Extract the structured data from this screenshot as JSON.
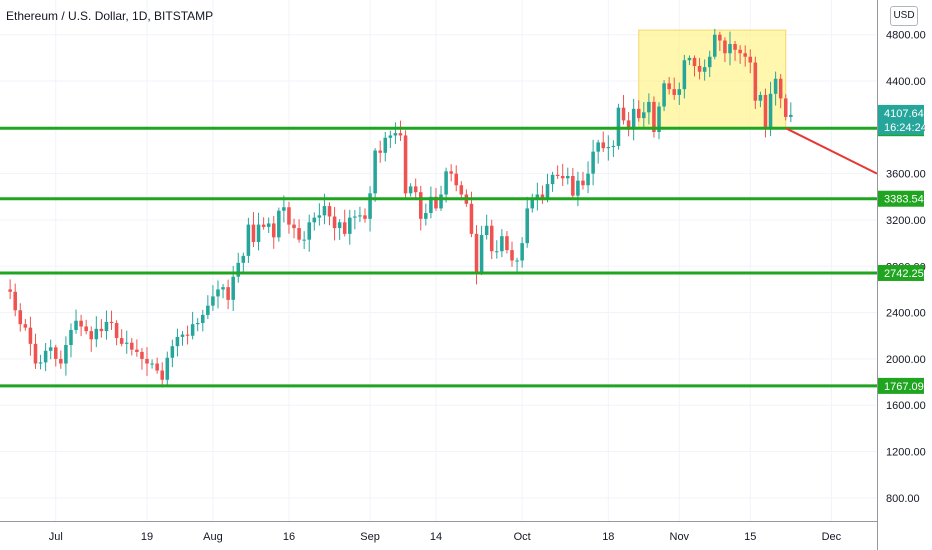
{
  "header": {
    "title": "Ethereum / U.S. Dollar, 1D, BITSTAMP",
    "currency_button": "USD"
  },
  "colors": {
    "up": "#26a69a",
    "down": "#ef5350",
    "level_line": "#1fa51f",
    "highlight": "#fff176",
    "projection": "#e53935",
    "price_label_bg": "#26a69a"
  },
  "chart_data": {
    "type": "candlestick",
    "symbol": "Ethereum / U.S. Dollar",
    "interval": "1D",
    "exchange": "BITSTAMP",
    "ylim": [
      600,
      5100
    ],
    "y_ticks": [
      "800.00",
      "1200.00",
      "1600.00",
      "2000.00",
      "2400.00",
      "2800.00",
      "3200.00",
      "3600.00",
      "4000.00",
      "4400.00",
      "4800.00"
    ],
    "x_ticks": [
      {
        "label": "Jul",
        "date": "2021-07-01"
      },
      {
        "label": "19",
        "date": "2021-07-19"
      },
      {
        "label": "Aug",
        "date": "2021-08-01"
      },
      {
        "label": "16",
        "date": "2021-08-16"
      },
      {
        "label": "Sep",
        "date": "2021-09-01"
      },
      {
        "label": "14",
        "date": "2021-09-14"
      },
      {
        "label": "Oct",
        "date": "2021-10-01"
      },
      {
        "label": "18",
        "date": "2021-10-18"
      },
      {
        "label": "Nov",
        "date": "2021-11-01"
      },
      {
        "label": "15",
        "date": "2021-11-15"
      },
      {
        "label": "Dec",
        "date": "2021-12-01"
      }
    ],
    "date_range": [
      "2021-06-20",
      "2021-12-10"
    ],
    "closes": [
      [
        "2021-06-21",
        2600
      ],
      [
        "2021-06-22",
        2580
      ],
      [
        "2021-06-23",
        2420
      ],
      [
        "2021-06-24",
        2300
      ],
      [
        "2021-06-25",
        2270
      ],
      [
        "2021-06-26",
        2130
      ],
      [
        "2021-06-27",
        1960
      ],
      [
        "2021-06-28",
        1970
      ],
      [
        "2021-06-29",
        2070
      ],
      [
        "2021-06-30",
        2100
      ],
      [
        "2021-07-01",
        2000
      ],
      [
        "2021-07-02",
        1960
      ],
      [
        "2021-07-03",
        2120
      ],
      [
        "2021-07-04",
        2250
      ],
      [
        "2021-07-05",
        2330
      ],
      [
        "2021-07-06",
        2280
      ],
      [
        "2021-07-07",
        2240
      ],
      [
        "2021-07-08",
        2170
      ],
      [
        "2021-07-09",
        2260
      ],
      [
        "2021-07-10",
        2240
      ],
      [
        "2021-07-11",
        2320
      ],
      [
        "2021-07-12",
        2310
      ],
      [
        "2021-07-13",
        2180
      ],
      [
        "2021-07-14",
        2130
      ],
      [
        "2021-07-15",
        2140
      ],
      [
        "2021-07-16",
        2080
      ],
      [
        "2021-07-17",
        2060
      ],
      [
        "2021-07-18",
        2000
      ],
      [
        "2021-07-19",
        1960
      ],
      [
        "2021-07-20",
        1960
      ],
      [
        "2021-07-21",
        1900
      ],
      [
        "2021-07-22",
        1820
      ],
      [
        "2021-07-23",
        2010
      ],
      [
        "2021-07-24",
        2110
      ],
      [
        "2021-07-25",
        2190
      ],
      [
        "2021-07-26",
        2210
      ],
      [
        "2021-07-27",
        2200
      ],
      [
        "2021-07-28",
        2300
      ],
      [
        "2021-07-29",
        2310
      ],
      [
        "2021-07-30",
        2380
      ],
      [
        "2021-07-31",
        2460
      ],
      [
        "2021-08-01",
        2540
      ],
      [
        "2021-08-02",
        2600
      ],
      [
        "2021-08-03",
        2620
      ],
      [
        "2021-08-04",
        2510
      ],
      [
        "2021-08-05",
        2710
      ],
      [
        "2021-08-06",
        2830
      ],
      [
        "2021-08-07",
        2890
      ],
      [
        "2021-08-08",
        3160
      ],
      [
        "2021-08-09",
        3010
      ],
      [
        "2021-08-10",
        3160
      ],
      [
        "2021-08-11",
        3140
      ],
      [
        "2021-08-12",
        3170
      ],
      [
        "2021-08-13",
        3050
      ],
      [
        "2021-08-14",
        3280
      ],
      [
        "2021-08-15",
        3310
      ],
      [
        "2021-08-16",
        3160
      ],
      [
        "2021-08-17",
        3130
      ],
      [
        "2021-08-18",
        3030
      ],
      [
        "2021-08-19",
        3030
      ],
      [
        "2021-08-20",
        3180
      ],
      [
        "2021-08-21",
        3220
      ],
      [
        "2021-08-22",
        3240
      ],
      [
        "2021-08-23",
        3320
      ],
      [
        "2021-08-24",
        3230
      ],
      [
        "2021-08-25",
        3130
      ],
      [
        "2021-08-26",
        3180
      ],
      [
        "2021-08-27",
        3080
      ],
      [
        "2021-08-28",
        3220
      ],
      [
        "2021-08-29",
        3230
      ],
      [
        "2021-08-30",
        3240
      ],
      [
        "2021-08-31",
        3210
      ],
      [
        "2021-09-01",
        3430
      ],
      [
        "2021-09-02",
        3800
      ],
      [
        "2021-09-03",
        3780
      ],
      [
        "2021-09-04",
        3910
      ],
      [
        "2021-09-05",
        3930
      ],
      [
        "2021-09-06",
        3950
      ],
      [
        "2021-09-07",
        3930
      ],
      [
        "2021-09-08",
        3430
      ],
      [
        "2021-09-09",
        3490
      ],
      [
        "2021-09-10",
        3440
      ],
      [
        "2021-09-11",
        3210
      ],
      [
        "2021-09-12",
        3260
      ],
      [
        "2021-09-13",
        3400
      ],
      [
        "2021-09-14",
        3300
      ],
      [
        "2021-09-15",
        3420
      ],
      [
        "2021-09-16",
        3620
      ],
      [
        "2021-09-17",
        3600
      ],
      [
        "2021-09-18",
        3500
      ],
      [
        "2021-09-19",
        3420
      ],
      [
        "2021-09-20",
        3340
      ],
      [
        "2021-09-21",
        3080
      ],
      [
        "2021-09-22",
        2750
      ],
      [
        "2021-09-23",
        3070
      ],
      [
        "2021-09-24",
        3150
      ],
      [
        "2021-09-25",
        2930
      ],
      [
        "2021-09-26",
        2930
      ],
      [
        "2021-09-27",
        3060
      ],
      [
        "2021-09-28",
        2940
      ],
      [
        "2021-09-29",
        2850
      ],
      [
        "2021-09-30",
        2850
      ],
      [
        "2021-10-01",
        3000
      ],
      [
        "2021-10-02",
        3300
      ],
      [
        "2021-10-03",
        3390
      ],
      [
        "2021-10-04",
        3420
      ],
      [
        "2021-10-05",
        3390
      ],
      [
        "2021-10-06",
        3510
      ],
      [
        "2021-10-07",
        3590
      ],
      [
        "2021-10-08",
        3580
      ],
      [
        "2021-10-09",
        3560
      ],
      [
        "2021-10-10",
        3580
      ],
      [
        "2021-10-11",
        3410
      ],
      [
        "2021-10-12",
        3540
      ],
      [
        "2021-10-13",
        3500
      ],
      [
        "2021-10-14",
        3600
      ],
      [
        "2021-10-15",
        3790
      ],
      [
        "2021-10-16",
        3870
      ],
      [
        "2021-10-17",
        3820
      ],
      [
        "2021-10-18",
        3830
      ],
      [
        "2021-10-19",
        3840
      ],
      [
        "2021-10-20",
        4170
      ],
      [
        "2021-10-21",
        4060
      ],
      [
        "2021-10-22",
        3980
      ],
      [
        "2021-10-23",
        4160
      ],
      [
        "2021-10-24",
        4080
      ],
      [
        "2021-10-25",
        4130
      ],
      [
        "2021-10-26",
        4220
      ],
      [
        "2021-10-27",
        3960
      ],
      [
        "2021-10-28",
        4180
      ],
      [
        "2021-10-29",
        4380
      ],
      [
        "2021-10-30",
        4330
      ],
      [
        "2021-10-31",
        4280
      ],
      [
        "2021-11-01",
        4330
      ],
      [
        "2021-11-02",
        4580
      ],
      [
        "2021-11-03",
        4600
      ],
      [
        "2021-11-04",
        4530
      ],
      [
        "2021-11-05",
        4480
      ],
      [
        "2021-11-06",
        4520
      ],
      [
        "2021-11-07",
        4610
      ],
      [
        "2021-11-08",
        4800
      ],
      [
        "2021-11-09",
        4750
      ],
      [
        "2021-11-10",
        4640
      ],
      [
        "2021-11-11",
        4720
      ],
      [
        "2021-11-12",
        4670
      ],
      [
        "2021-11-13",
        4640
      ],
      [
        "2021-11-14",
        4610
      ],
      [
        "2021-11-15",
        4560
      ],
      [
        "2021-11-16",
        4230
      ],
      [
        "2021-11-17",
        4280
      ],
      [
        "2021-11-18",
        3990
      ],
      [
        "2021-11-19",
        4290
      ],
      [
        "2021-11-20",
        4420
      ],
      [
        "2021-11-21",
        4250
      ],
      [
        "2021-11-22",
        4090
      ],
      [
        "2021-11-23",
        4107.64
      ]
    ],
    "levels": [
      3992.69,
      3383.54,
      2742.25,
      1767.09
    ],
    "current_price": "4107.64",
    "countdown": "16:24:24",
    "highlight_zone": {
      "from": "2021-10-24",
      "to": "2021-11-22",
      "low": 3992.69,
      "high": 4840
    },
    "projection_line": {
      "from": [
        "2021-11-22",
        3992.69
      ],
      "to": [
        "2021-12-10",
        3600
      ]
    }
  }
}
